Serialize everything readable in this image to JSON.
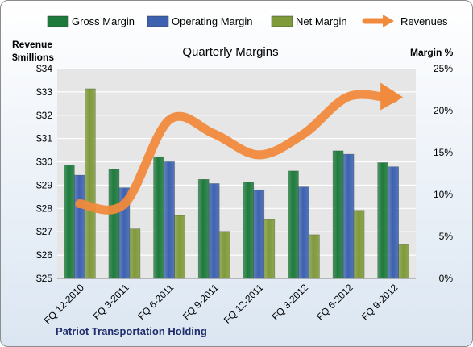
{
  "chart_data": {
    "type": "bar",
    "title": "Quarterly Margins",
    "y_left_label": [
      "Revenue",
      "$millions"
    ],
    "y_right_label": "Margin %",
    "y_left_range": [
      25,
      34
    ],
    "y_left_ticks": [
      "$25",
      "$26",
      "$27",
      "$28",
      "$29",
      "$30",
      "$31",
      "$32",
      "$33",
      "$34"
    ],
    "y_right_range": [
      0,
      25
    ],
    "y_right_ticks": [
      "0%",
      "5%",
      "10%",
      "15%",
      "20%",
      "25%"
    ],
    "categories": [
      "FQ 12-2010",
      "FQ 3-2011",
      "FQ 6-2011",
      "FQ 9-2011",
      "FQ 12-2011",
      "FQ 3-2012",
      "FQ 6-2012",
      "FQ 9-2012"
    ],
    "series": [
      {
        "name": "Gross Margin",
        "axis": "right",
        "type": "bar",
        "color": "#1e7a3c",
        "values": [
          13.5,
          13.0,
          14.5,
          11.8,
          11.5,
          12.8,
          15.2,
          13.8
        ]
      },
      {
        "name": "Operating Margin",
        "axis": "right",
        "type": "bar",
        "color": "#3d62b0",
        "values": [
          12.3,
          10.8,
          13.9,
          11.3,
          10.5,
          10.9,
          14.8,
          13.3
        ]
      },
      {
        "name": "Net Margin",
        "axis": "right",
        "type": "bar",
        "color": "#7f9a3a",
        "values": [
          22.6,
          5.9,
          7.5,
          5.6,
          7.0,
          5.2,
          8.1,
          4.1
        ]
      },
      {
        "name": "Revenues",
        "axis": "left",
        "type": "line",
        "color": "#f08a3c",
        "values": [
          28.2,
          28.2,
          31.8,
          31.2,
          30.3,
          31.2,
          32.8,
          32.7
        ]
      }
    ],
    "grid": true,
    "legend_position": "top"
  },
  "source_label": "Patriot Transportation  Holding"
}
